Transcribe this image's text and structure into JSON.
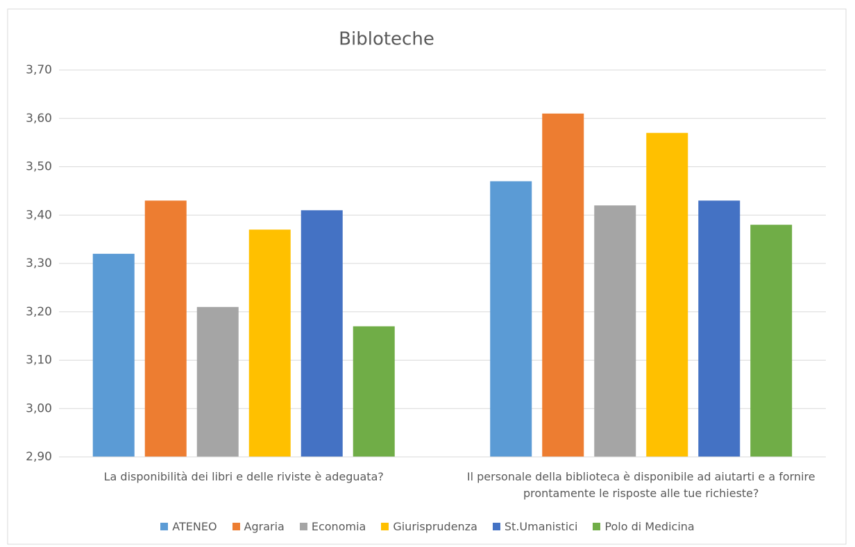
{
  "chart_data": {
    "type": "bar",
    "title": "Bibloteche",
    "categories": [
      "La disponibilità dei libri e delle riviste è adeguata?",
      "Il personale della biblioteca è disponibile ad aiutarti e a fornire prontamente le risposte alle tue richieste?"
    ],
    "series": [
      {
        "name": "ATENEO",
        "color": "#5b9bd5",
        "values": [
          3.32,
          3.47
        ]
      },
      {
        "name": "Agraria",
        "color": "#ed7d31",
        "values": [
          3.43,
          3.61
        ]
      },
      {
        "name": "Economia",
        "color": "#a5a5a5",
        "values": [
          3.21,
          3.42
        ]
      },
      {
        "name": "Giurisprudenza",
        "color": "#ffc000",
        "values": [
          3.37,
          3.57
        ]
      },
      {
        "name": "St.Umanistici",
        "color": "#4472c4",
        "values": [
          3.41,
          3.43
        ]
      },
      {
        "name": "Polo di Medicina",
        "color": "#70ad47",
        "values": [
          3.17,
          3.38
        ]
      }
    ],
    "ylim": [
      2.9,
      3.7
    ],
    "yticks": [
      {
        "value": 2.9,
        "label": "2,90"
      },
      {
        "value": 3.0,
        "label": "3,00"
      },
      {
        "value": 3.1,
        "label": "3,10"
      },
      {
        "value": 3.2,
        "label": "3,20"
      },
      {
        "value": 3.3,
        "label": "3,30"
      },
      {
        "value": 3.4,
        "label": "3,40"
      },
      {
        "value": 3.5,
        "label": "3,50"
      },
      {
        "value": 3.6,
        "label": "3,60"
      },
      {
        "value": 3.7,
        "label": "3,70"
      }
    ],
    "grid": true,
    "legend": "bottom"
  }
}
